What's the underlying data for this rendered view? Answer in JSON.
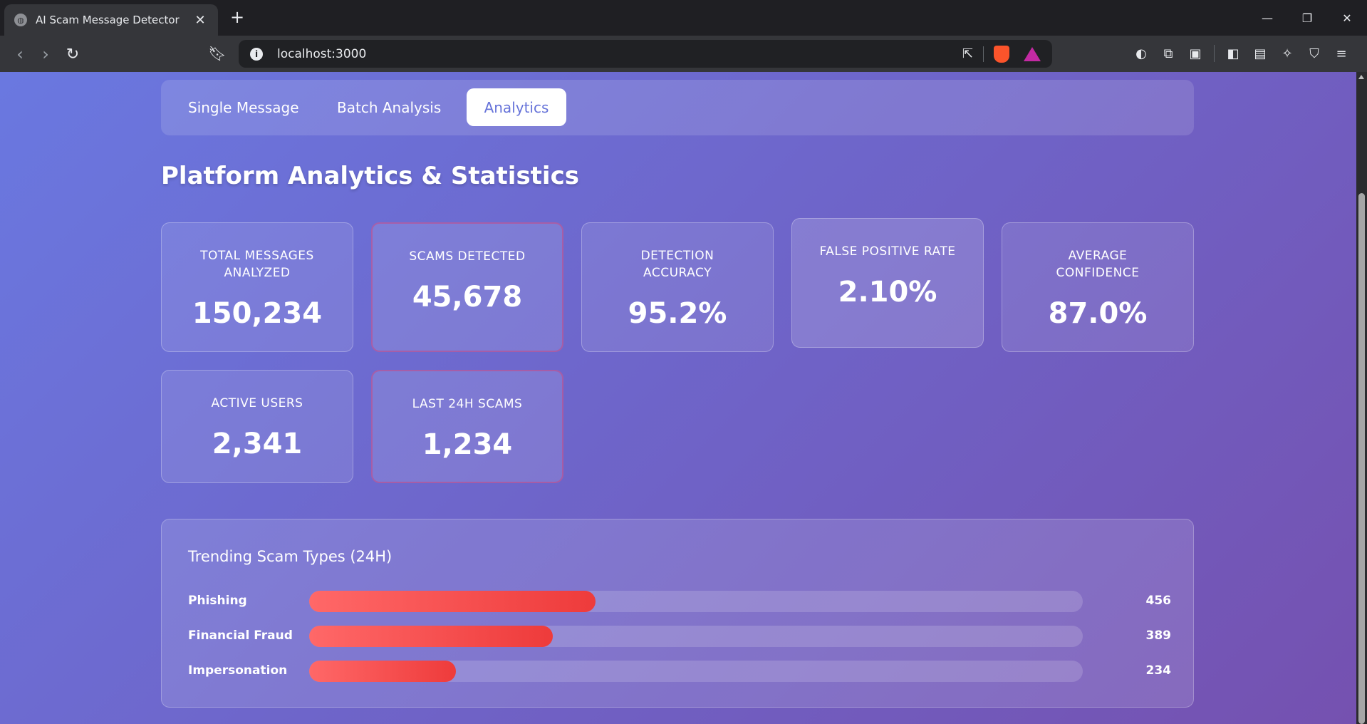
{
  "browser": {
    "tab_title": "AI Scam Message Detector",
    "tab_icon": "globe-icon",
    "url": "localhost:3000"
  },
  "nav_tabs": [
    {
      "label": "Single Message",
      "active": false
    },
    {
      "label": "Batch Analysis",
      "active": false
    },
    {
      "label": "Analytics",
      "active": true
    }
  ],
  "page_title": "Platform Analytics & Statistics",
  "stats": [
    {
      "label": "Total Messages Analyzed",
      "value": "150,234"
    },
    {
      "label": "Scams Detected",
      "value": "45,678"
    },
    {
      "label": "Detection Accuracy",
      "value": "95.2%"
    },
    {
      "label": "False Positive Rate",
      "value": "2.10%"
    },
    {
      "label": "Average Confidence",
      "value": "87.0%"
    },
    {
      "label": "Active Users",
      "value": "2,341"
    },
    {
      "label": "Last 24H Scams",
      "value": "1,234"
    }
  ],
  "trending": {
    "title": "Trending Scam Types (24H)",
    "items": [
      {
        "name": "Phishing",
        "count": "456",
        "fill": 0.37
      },
      {
        "name": "Financial Fraud",
        "count": "389",
        "fill": 0.315
      },
      {
        "name": "Impersonation",
        "count": "234",
        "fill": 0.19
      }
    ]
  },
  "colors": {
    "accent": "#6673d9",
    "bar_start": "#ff6868",
    "bar_end": "#ee3b3b",
    "bg_start": "#6a78e0",
    "bg_end": "#7551b0"
  }
}
